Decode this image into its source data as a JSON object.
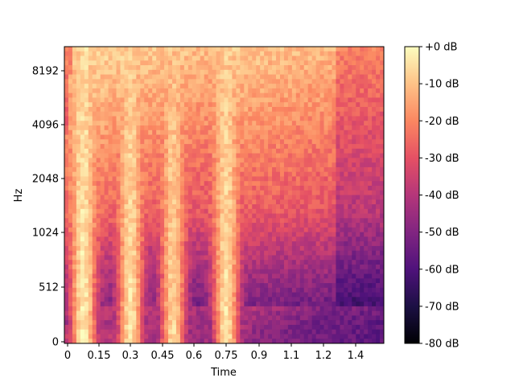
{
  "chart_data": {
    "type": "heatmap",
    "title": "",
    "xlabel": "Time",
    "ylabel": "Hz",
    "x_ticks": [
      "0",
      "0.15",
      "0.3",
      "0.45",
      "0.6",
      "0.75",
      "0.9",
      "1.1",
      "1.2",
      "1.4"
    ],
    "y_ticks": [
      "0",
      "512",
      "1024",
      "2048",
      "4096",
      "8192"
    ],
    "y_scale": "log",
    "colorbar": {
      "ticks": [
        "+0 dB",
        "-10 dB",
        "-20 dB",
        "-30 dB",
        "-40 dB",
        "-50 dB",
        "-60 dB",
        "-70 dB",
        "-80 dB"
      ],
      "range_db": [
        -80,
        0
      ],
      "colormap": "magma"
    },
    "x_range_sec": [
      0,
      1.5
    ],
    "bursts": [
      {
        "time": 0.09,
        "peak_db": -2
      },
      {
        "time": 0.31,
        "peak_db": -4
      },
      {
        "time": 0.51,
        "peak_db": -6
      },
      {
        "time": 0.76,
        "peak_db": -4
      }
    ],
    "grid": false,
    "colors": {
      "colormap_stops": [
        "#000004",
        "#1c1044",
        "#4f127b",
        "#812581",
        "#b5367a",
        "#e55064",
        "#fb8761",
        "#fec287",
        "#fcfdbf"
      ]
    }
  }
}
